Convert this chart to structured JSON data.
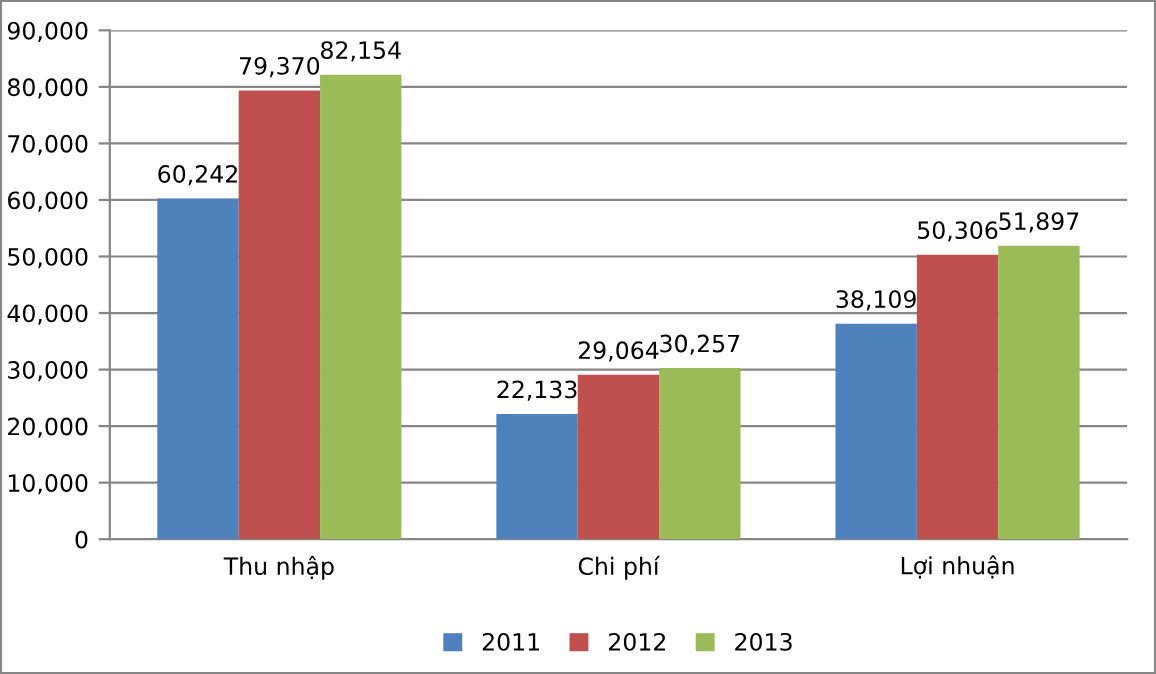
{
  "chart_data": {
    "type": "bar",
    "categories": [
      "Thu nhập",
      "Chi phí",
      "Lợi nhuận"
    ],
    "series": [
      {
        "name": "2011",
        "color": "#4f81bd",
        "values": [
          60242,
          22133,
          38109
        ],
        "value_labels": [
          "60,242",
          "22,133",
          "38,109"
        ]
      },
      {
        "name": "2012",
        "color": "#c0504d",
        "values": [
          79370,
          29064,
          50306
        ],
        "value_labels": [
          "79,370",
          "29,064",
          "50,306"
        ]
      },
      {
        "name": "2013",
        "color": "#9bbb59",
        "values": [
          82154,
          30257,
          51897
        ],
        "value_labels": [
          "82,154",
          "30,257",
          "51,897"
        ]
      }
    ],
    "ylim": [
      0,
      90000
    ],
    "yticks": [
      {
        "value": 0,
        "label": "0"
      },
      {
        "value": 10000,
        "label": "10,000"
      },
      {
        "value": 20000,
        "label": "20,000"
      },
      {
        "value": 30000,
        "label": "30,000"
      },
      {
        "value": 40000,
        "label": "40,000"
      },
      {
        "value": 50000,
        "label": "50,000"
      },
      {
        "value": 60000,
        "label": "60,000"
      },
      {
        "value": 70000,
        "label": "70,000"
      },
      {
        "value": 80000,
        "label": "80,000"
      },
      {
        "value": 90000,
        "label": "90,000"
      }
    ],
    "grid": "y",
    "legend": "bottom"
  }
}
